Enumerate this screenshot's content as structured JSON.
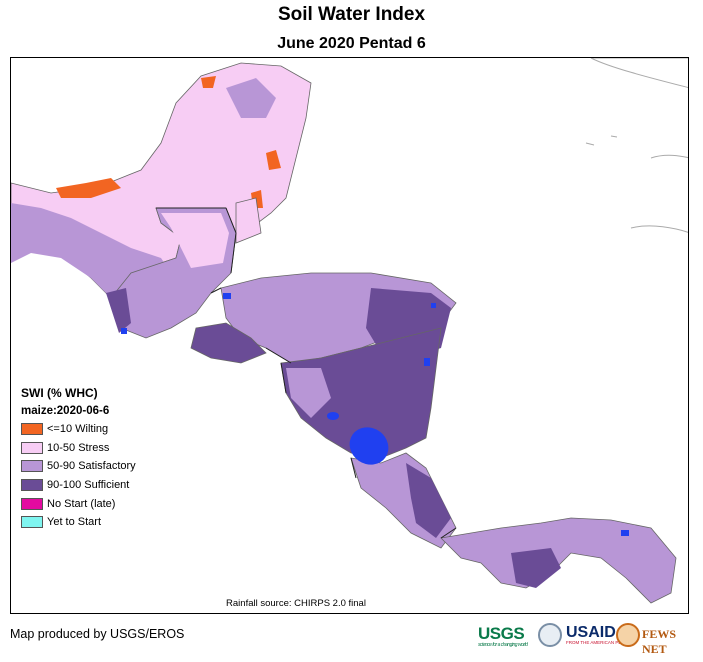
{
  "title": "Soil Water Index",
  "subtitle": "June 2020 Pentad 6",
  "legend": {
    "title": "SWI (% WHC)",
    "subtitle": "maize:2020-06-6",
    "items": [
      {
        "label": "<=10 Wilting",
        "color": "#f26522"
      },
      {
        "label": "10-50 Stress",
        "color": "#f7cdf4"
      },
      {
        "label": "50-90 Satisfactory",
        "color": "#b896d6"
      },
      {
        "label": "90-100 Sufficient",
        "color": "#6a4c96"
      },
      {
        "label": "No Start (late)",
        "color": "#e30aa0"
      },
      {
        "label": "Yet to Start",
        "color": "#7ff5f0"
      }
    ]
  },
  "colors": {
    "water_body": "#2040f0",
    "border_line": "#666666",
    "land_outline": "#aaaaaa"
  },
  "source": "Rainfall source: CHIRPS 2.0 final",
  "footer": "Map produced by USGS/EROS",
  "logos": {
    "usgs": "USGS",
    "usgs_tagline": "science for a changing world",
    "usaid": "USAID",
    "usaid_tagline": "FROM THE AMERICAN PEOPLE",
    "fews": "FEWS NET"
  }
}
